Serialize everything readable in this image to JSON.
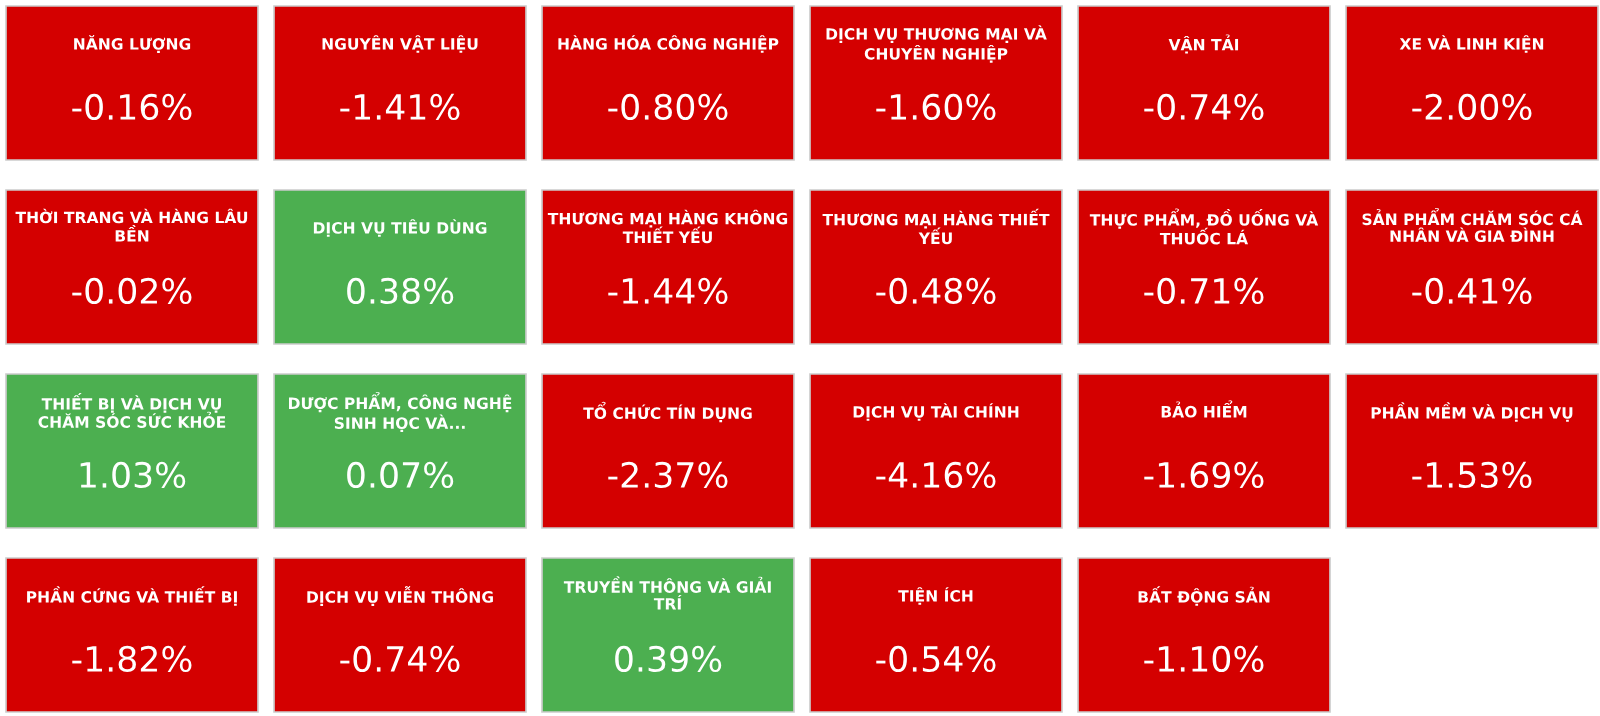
{
  "chart_data": {
    "type": "other",
    "categories": [
      "NĂNG LƯỢNG",
      "NGUYÊN VẬT LIỆU",
      "HÀNG HÓA CÔNG NGHIỆP",
      "DỊCH VỤ THƯƠNG MẠI VÀ CHUYÊN NGHIỆP",
      "VẬN TẢI",
      "XE VÀ LINH KIỆN",
      "THỜI TRANG VÀ HÀNG LÂU BỀN",
      "DỊCH VỤ TIÊU DÙNG",
      "THƯƠNG MẠI HÀNG KHÔNG THIẾT YẾU",
      "THƯƠNG MẠI HÀNG THIẾT YẾU",
      "THỰC PHẨM, ĐỒ UỐNG VÀ THUỐC LÁ",
      "SẢN PHẨM CHĂM SÓC CÁ NHÂN VÀ GIA ĐÌNH",
      "THIẾT BỊ VÀ DỊCH VỤ CHĂM SÓC SỨC KHỎE",
      "DƯỢC PHẨM, CÔNG NGHỆ SINH HỌC VÀ...",
      "TỔ CHỨC TÍN DỤNG",
      "DỊCH VỤ TÀI CHÍNH",
      "BẢO HIỂM",
      "PHẦN MỀM VÀ DỊCH VỤ",
      "PHẦN CỨNG VÀ THIẾT BỊ",
      "DỊCH VỤ VIỄN THÔNG",
      "TRUYỀN THÔNG VÀ GIẢI TRÍ",
      "TIỆN ÍCH",
      "BẤT ĐỘNG SẢN"
    ],
    "values": [
      -0.16,
      -1.41,
      -0.8,
      -1.6,
      -0.74,
      -2.0,
      -0.02,
      0.38,
      -1.44,
      -0.48,
      -0.71,
      -0.41,
      1.03,
      0.07,
      -2.37,
      -4.16,
      -1.69,
      -1.53,
      -1.82,
      -0.74,
      0.39,
      -0.54,
      -1.1
    ],
    "value_labels": [
      "-0.16%",
      "-1.41%",
      "-0.80%",
      "-1.60%",
      "-0.74%",
      "-2.00%",
      "-0.02%",
      "0.38%",
      "-1.44%",
      "-0.48%",
      "-0.71%",
      "-0.41%",
      "1.03%",
      "0.07%",
      "-2.37%",
      "-4.16%",
      "-1.69%",
      "-1.53%",
      "-1.82%",
      "-0.74%",
      "0.39%",
      "-0.54%",
      "-1.10%"
    ],
    "colors": [
      "#d40000",
      "#d40000",
      "#d40000",
      "#d40000",
      "#d40000",
      "#d40000",
      "#d40000",
      "#4caf50",
      "#d40000",
      "#d40000",
      "#d40000",
      "#d40000",
      "#4caf50",
      "#4caf50",
      "#d40000",
      "#d40000",
      "#d40000",
      "#d40000",
      "#d40000",
      "#d40000",
      "#4caf50",
      "#d40000",
      "#d40000"
    ]
  }
}
